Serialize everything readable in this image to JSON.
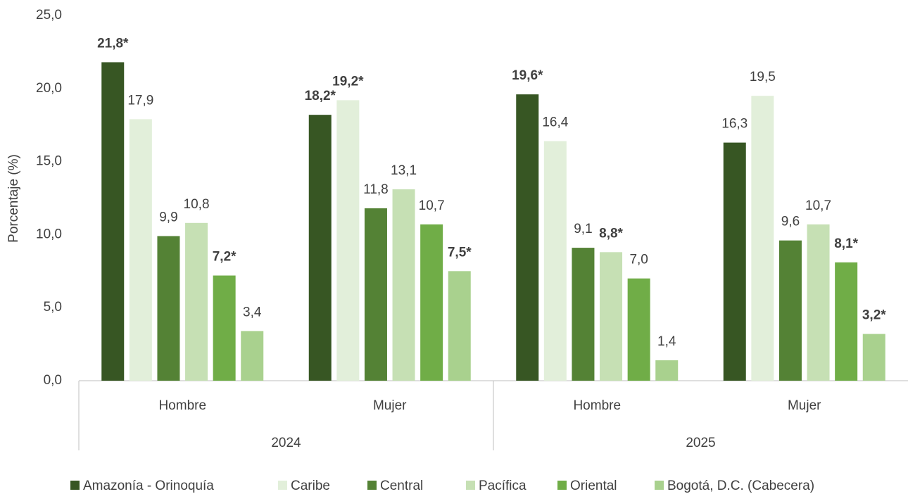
{
  "chart_data": {
    "type": "bar",
    "y_label": "Porcentaje (%)",
    "groups": [
      {
        "name": "2024",
        "categories": [
          "Hombre",
          "Mujer"
        ]
      },
      {
        "name": "2025",
        "categories": [
          "Hombre",
          "Mujer"
        ]
      }
    ],
    "series": [
      {
        "name": "Amazonía - Orinoquía",
        "color": "#375623",
        "values": [
          21.8,
          18.2,
          19.6,
          16.3
        ],
        "value_labels": [
          "21,8*",
          "18,2*",
          "19,6*",
          "16,3"
        ],
        "bold": [
          true,
          true,
          true,
          false
        ]
      },
      {
        "name": "Caribe",
        "color": "#e2efda",
        "values": [
          17.9,
          19.2,
          16.4,
          19.5
        ],
        "value_labels": [
          "17,9",
          "19,2*",
          "16,4",
          "19,5"
        ],
        "bold": [
          false,
          true,
          false,
          false
        ]
      },
      {
        "name": "Central",
        "color": "#548235",
        "values": [
          9.9,
          11.8,
          9.1,
          9.6
        ],
        "value_labels": [
          "9,9",
          "11,8",
          "9,1",
          "9,6"
        ],
        "bold": [
          false,
          false,
          false,
          false
        ]
      },
      {
        "name": "Pacífica",
        "color": "#c6e0b4",
        "values": [
          10.8,
          13.1,
          8.8,
          10.7
        ],
        "value_labels": [
          "10,8",
          "13,1",
          "8,8*",
          "10,7"
        ],
        "bold": [
          false,
          false,
          true,
          false
        ]
      },
      {
        "name": "Oriental",
        "color": "#70ad47",
        "values": [
          7.2,
          10.7,
          7.0,
          8.1
        ],
        "value_labels": [
          "7,2*",
          "10,7",
          "7,0",
          "8,1*"
        ],
        "bold": [
          true,
          false,
          false,
          true
        ]
      },
      {
        "name": "Bogotá, D.C. (Cabecera)",
        "color": "#a9d18e",
        "values": [
          3.4,
          7.5,
          1.4,
          3.2
        ],
        "value_labels": [
          "3,4",
          "7,5*",
          "1,4",
          "3,2*"
        ],
        "bold": [
          false,
          true,
          false,
          true
        ]
      }
    ],
    "ylim": [
      0,
      25
    ],
    "yticks": [
      {
        "value": 0,
        "label": "0,0"
      },
      {
        "value": 5,
        "label": "5,0"
      },
      {
        "value": 10,
        "label": "10,0"
      },
      {
        "value": 15,
        "label": "15,0"
      },
      {
        "value": 20,
        "label": "20,0"
      },
      {
        "value": 25,
        "label": "25,0"
      }
    ],
    "legend": "bottom"
  }
}
